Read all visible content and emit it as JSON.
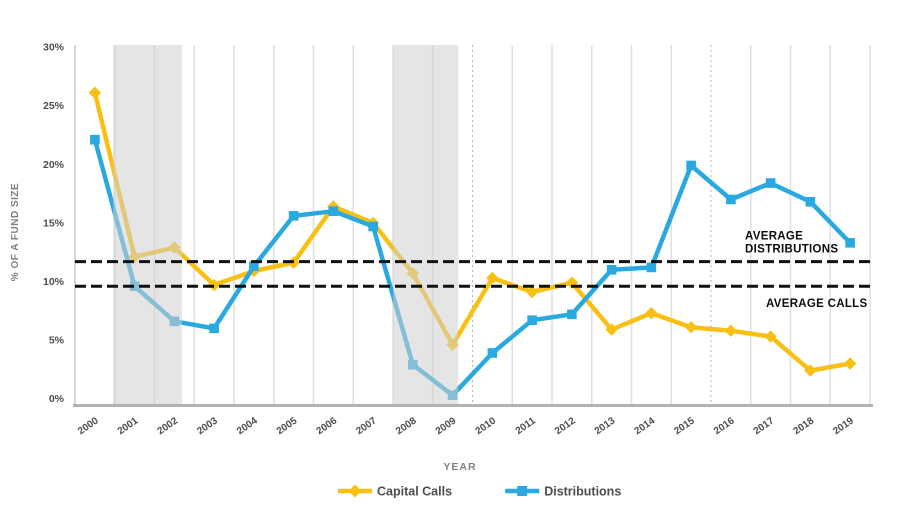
{
  "chart_data": {
    "type": "line",
    "title": "",
    "xlabel": "YEAR",
    "ylabel": "% OF A FUND SIZE",
    "x": [
      2000,
      2001,
      2002,
      2003,
      2004,
      2005,
      2006,
      2007,
      2008,
      2009,
      2010,
      2011,
      2012,
      2013,
      2014,
      2015,
      2016,
      2017,
      2018,
      2019
    ],
    "x_tick_labels": [
      "2000",
      "2001",
      "2002",
      "2003",
      "2004",
      "2005",
      "2006",
      "2007",
      "2008",
      "2009",
      "2010",
      "2011",
      "2012",
      "2013",
      "2014",
      "2015",
      "2016",
      "2017",
      "2018",
      "2019"
    ],
    "ylim": [
      0,
      30
    ],
    "yticks": [
      30,
      25,
      20,
      15,
      10,
      5,
      0
    ],
    "ytick_labels": [
      "30%",
      "25%",
      "20%",
      "15%",
      "10%",
      "5%",
      "0%"
    ],
    "grid": "vertical-only",
    "legend_position": "bottom",
    "series": [
      {
        "name": "Capital Calls",
        "color": "#F9C013",
        "marker": "diamond",
        "values": [
          26.1,
          12.1,
          12.9,
          9.7,
          10.9,
          11.6,
          16.4,
          15.0,
          10.7,
          4.6,
          10.3,
          9.1,
          9.9,
          5.9,
          7.3,
          6.1,
          5.8,
          5.3,
          2.4,
          3.0
        ]
      },
      {
        "name": "Distributions",
        "color": "#29A9E0",
        "marker": "square",
        "values": [
          22.1,
          9.6,
          6.6,
          6.0,
          11.3,
          15.6,
          16.0,
          14.7,
          2.9,
          0.3,
          3.9,
          6.7,
          7.2,
          11.0,
          11.2,
          19.9,
          17.0,
          18.4,
          16.8,
          13.3
        ]
      }
    ],
    "reference_lines": [
      {
        "name": "average-distributions",
        "value": 11.7,
        "label_lines": [
          "AVERAGE",
          "DISTRIBUTIONS"
        ],
        "label_position": "above-right"
      },
      {
        "name": "average-calls",
        "value": 9.6,
        "label_lines": [
          "AVERAGE CALLS"
        ],
        "label_position": "below-right"
      }
    ],
    "shaded_periods": [
      {
        "name": "recession-band-2001",
        "start_index": 0.96,
        "end_index": 2.69
      },
      {
        "name": "recession-band-2008",
        "start_index": 8.0,
        "end_index": 9.64
      }
    ],
    "dotted_boundaries": [
      10,
      16
    ],
    "colors": {
      "grid": "#e1e1e1",
      "axis": "#b3b3b3",
      "band_fill": "#cfcfcf",
      "reference_line": "#111111",
      "tick_text": "#4d4d4d",
      "axis_title_text": "#7f7f7f",
      "legend_text": "#4d4d4d",
      "annotation_text": "#0d0d0d"
    }
  }
}
